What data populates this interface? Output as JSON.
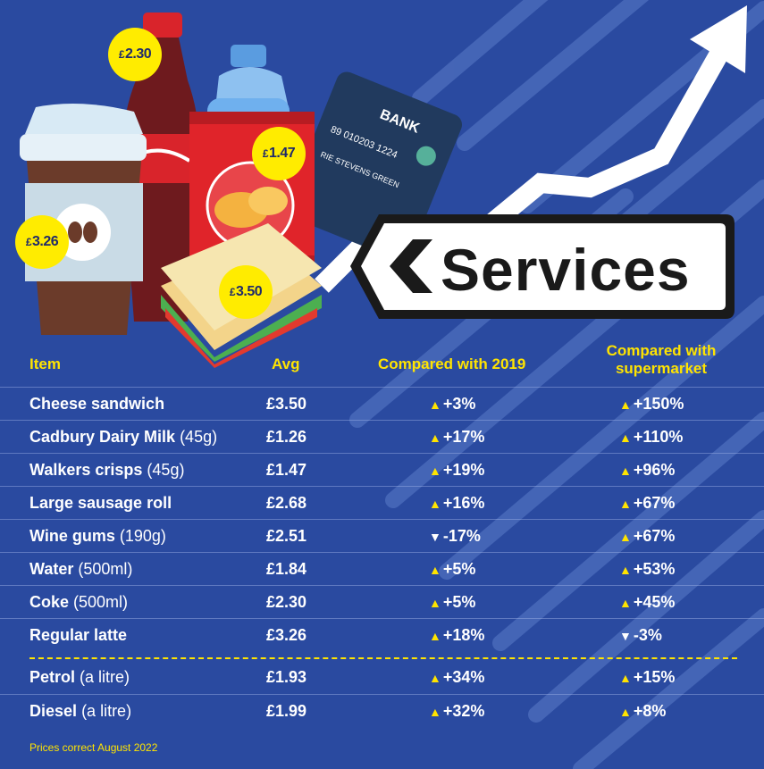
{
  "sign": {
    "text": "Services"
  },
  "price_tags": {
    "coke": "2.30",
    "crisps": "1.47",
    "latte": "3.26",
    "sandwich": "3.50",
    "currency": "£"
  },
  "card": {
    "bank": "BANK",
    "number": "89 010203 1224",
    "name": "RIE STEVENS GREEN"
  },
  "table": {
    "headers": {
      "item": "Item",
      "avg": "Avg",
      "c2019": "Compared with 2019",
      "csup_line1": "Compared with",
      "csup_line2": "supermarket"
    },
    "rows": [
      {
        "name": "Cheese sandwich",
        "note": "",
        "avg": "£3.50",
        "c2019": "+3%",
        "c2019_dir": "up",
        "csup": "+150%",
        "csup_dir": "up"
      },
      {
        "name": "Cadbury Dairy Milk",
        "note": "(45g)",
        "avg": "£1.26",
        "c2019": "+17%",
        "c2019_dir": "up",
        "csup": "+110%",
        "csup_dir": "up"
      },
      {
        "name": "Walkers crisps",
        "note": "(45g)",
        "avg": "£1.47",
        "c2019": "+19%",
        "c2019_dir": "up",
        "csup": "+96%",
        "csup_dir": "up"
      },
      {
        "name": "Large sausage roll",
        "note": "",
        "avg": "£2.68",
        "c2019": "+16%",
        "c2019_dir": "up",
        "csup": "+67%",
        "csup_dir": "up"
      },
      {
        "name": "Wine gums",
        "note": "(190g)",
        "avg": "£2.51",
        "c2019": "-17%",
        "c2019_dir": "down",
        "csup": "+67%",
        "csup_dir": "up"
      },
      {
        "name": "Water",
        "note": "(500ml)",
        "avg": "£1.84",
        "c2019": "+5%",
        "c2019_dir": "up",
        "csup": "+53%",
        "csup_dir": "up"
      },
      {
        "name": "Coke",
        "note": "(500ml)",
        "avg": "£2.30",
        "c2019": "+5%",
        "c2019_dir": "up",
        "csup": "+45%",
        "csup_dir": "up"
      },
      {
        "name": "Regular latte",
        "note": "",
        "avg": "£3.26",
        "c2019": "+18%",
        "c2019_dir": "up",
        "csup": "-3%",
        "csup_dir": "down"
      }
    ],
    "fuel_rows": [
      {
        "name": "Petrol",
        "note": "(a litre)",
        "avg": "£1.93",
        "c2019": "+34%",
        "c2019_dir": "up",
        "csup": "+15%",
        "csup_dir": "up"
      },
      {
        "name": "Diesel",
        "note": "(a litre)",
        "avg": "£1.99",
        "c2019": "+32%",
        "c2019_dir": "up",
        "csup": "+8%",
        "csup_dir": "up"
      }
    ]
  },
  "footer": "Prices correct August 2022",
  "colors": {
    "background": "#2a4aa0",
    "accent": "#ffe400",
    "sign_border": "#1a1a1a"
  }
}
